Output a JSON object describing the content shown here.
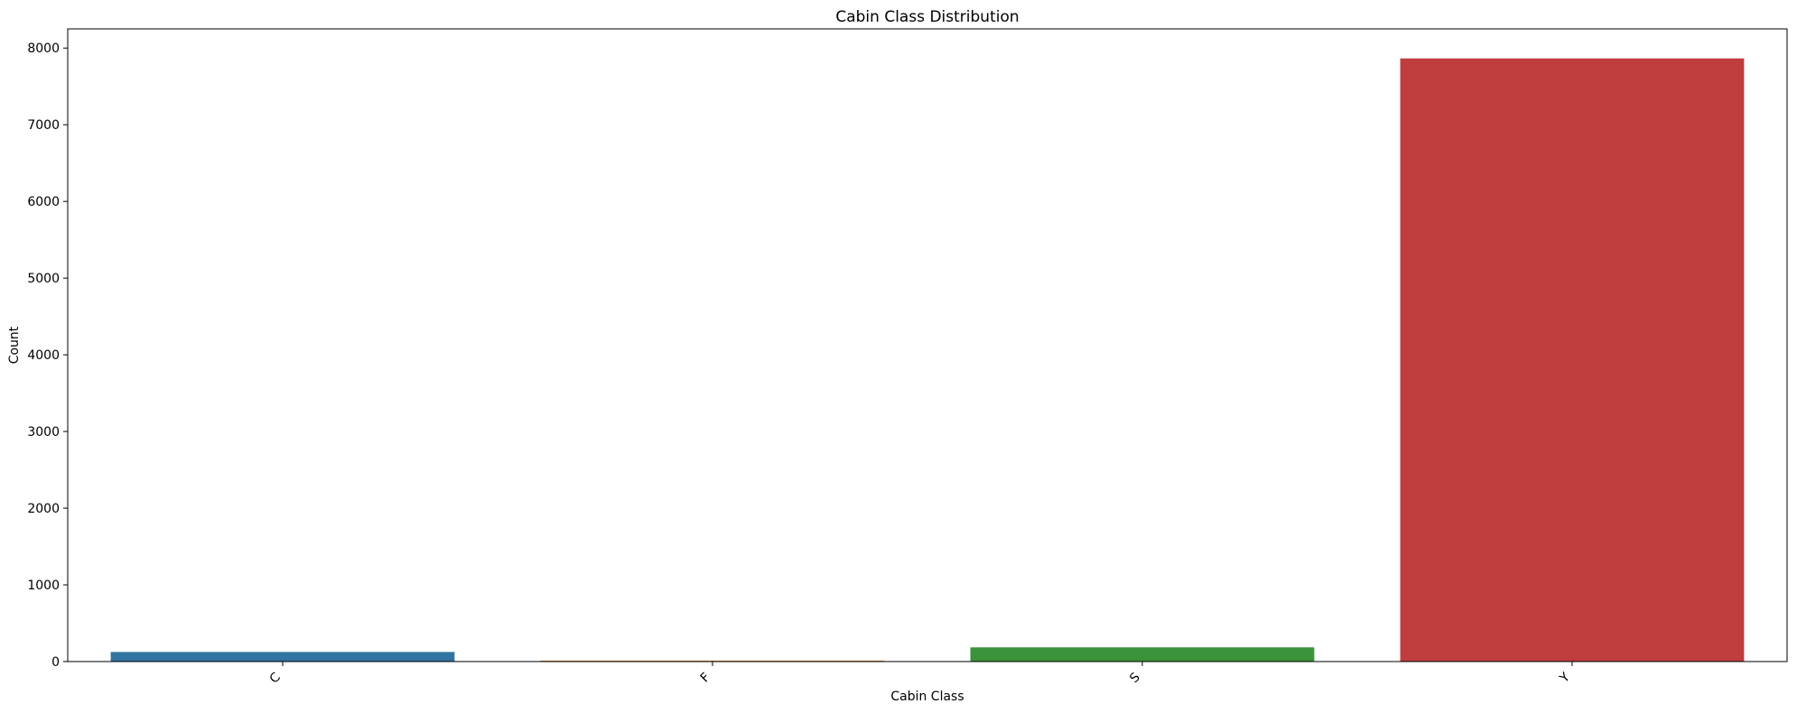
{
  "chart_data": {
    "type": "bar",
    "title": "Cabin Class Distribution",
    "xlabel": "Cabin Class",
    "ylabel": "Count",
    "categories": [
      "C",
      "F",
      "S",
      "Y"
    ],
    "values": [
      125,
      12,
      185,
      7865
    ],
    "colors": [
      "#3274a1",
      "#e1812c",
      "#3a923a",
      "#c03d3e"
    ],
    "ylim": [
      0,
      8250
    ],
    "yticks": [
      0,
      1000,
      2000,
      3000,
      4000,
      5000,
      6000,
      7000,
      8000
    ],
    "grid": false,
    "legend": "none"
  }
}
